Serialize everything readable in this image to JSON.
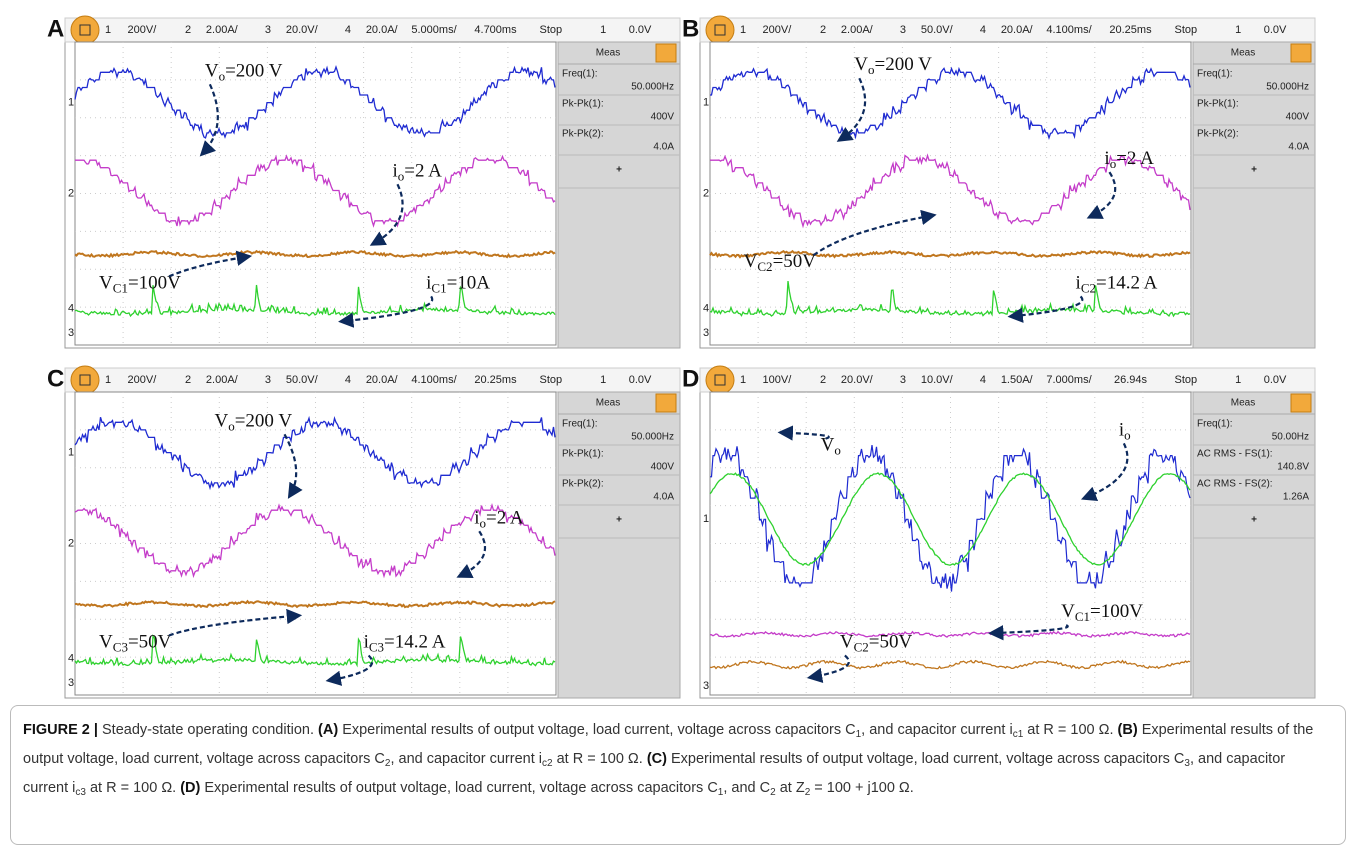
{
  "panels": [
    {
      "label": "A",
      "header": [
        "1",
        "200V/",
        "2",
        "2.00A/",
        "3",
        "20.0V/",
        "4",
        "20.0A/",
        "5.000ms/",
        "4.700ms",
        "Stop",
        "1",
        "0.0V"
      ],
      "channels": [
        "1",
        "2",
        "3",
        "4"
      ],
      "meas": {
        "title": "Meas",
        "rows": [
          [
            "Freq(1):",
            "50.000Hz"
          ],
          [
            "Pk-Pk(1):",
            "400V"
          ],
          [
            "Pk-Pk(2):",
            "4.0A"
          ]
        ],
        "add": "+"
      },
      "annotations": [
        {
          "base": "V",
          "sub": "o",
          "rest": "=200 V"
        },
        {
          "base": "i",
          "sub": "o",
          "rest": "=2 A"
        },
        {
          "base": "V",
          "sub": "C1",
          "rest": "=100V"
        },
        {
          "base": "i",
          "sub": "C1",
          "rest": "=10A"
        }
      ]
    },
    {
      "label": "B",
      "header": [
        "1",
        "200V/",
        "2",
        "2.00A/",
        "3",
        "50.0V/",
        "4",
        "20.0A/",
        "4.100ms/",
        "20.25ms",
        "Stop",
        "1",
        "0.0V"
      ],
      "channels": [
        "1",
        "2",
        "3",
        "4"
      ],
      "meas": {
        "title": "Meas",
        "rows": [
          [
            "Freq(1):",
            "50.000Hz"
          ],
          [
            "Pk-Pk(1):",
            "400V"
          ],
          [
            "Pk-Pk(2):",
            "4.0A"
          ]
        ],
        "add": "+"
      },
      "annotations": [
        {
          "base": "V",
          "sub": "o",
          "rest": "=200 V"
        },
        {
          "base": "i",
          "sub": "o",
          "rest": "=2 A"
        },
        {
          "base": "V",
          "sub": "C2",
          "rest": "=50V"
        },
        {
          "base": "i",
          "sub": "C2",
          "rest": "=14.2 A"
        }
      ]
    },
    {
      "label": "C",
      "header": [
        "1",
        "200V/",
        "2",
        "2.00A/",
        "3",
        "50.0V/",
        "4",
        "20.0A/",
        "4.100ms/",
        "20.25ms",
        "Stop",
        "1",
        "0.0V"
      ],
      "channels": [
        "1",
        "2",
        "3",
        "4"
      ],
      "meas": {
        "title": "Meas",
        "rows": [
          [
            "Freq(1):",
            "50.000Hz"
          ],
          [
            "Pk-Pk(1):",
            "400V"
          ],
          [
            "Pk-Pk(2):",
            "4.0A"
          ]
        ],
        "add": "+"
      },
      "annotations": [
        {
          "base": "V",
          "sub": "o",
          "rest": "=200 V"
        },
        {
          "base": "i",
          "sub": "o",
          "rest": "=2 A"
        },
        {
          "base": "V",
          "sub": "C3",
          "rest": "=50V"
        },
        {
          "base": "i",
          "sub": "C3",
          "rest": "=14.2 A"
        }
      ]
    },
    {
      "label": "D",
      "header": [
        "1",
        "100V/",
        "2",
        "20.0V/",
        "3",
        "10.0V/",
        "4",
        "1.50A/",
        "7.000ms/",
        "26.94s",
        "Stop",
        "1",
        "0.0V"
      ],
      "channels": [
        "1",
        "3"
      ],
      "meas": {
        "title": "Meas",
        "rows": [
          [
            "Freq(1):",
            "50.00Hz"
          ],
          [
            "AC RMS - FS(1):",
            "140.8V"
          ],
          [
            "AC RMS - FS(2):",
            "1.26A"
          ]
        ],
        "add": "+"
      },
      "annotations": [
        {
          "base": "V",
          "sub": "o",
          "rest": ""
        },
        {
          "base": "i",
          "sub": "o",
          "rest": ""
        },
        {
          "base": "V",
          "sub": "C1",
          "rest": "=100V"
        },
        {
          "base": "V",
          "sub": "C2",
          "rest": "=50V"
        }
      ]
    }
  ],
  "caption": [
    {
      "text": "FIGURE 2 |",
      "style": "bold"
    },
    {
      "text": " Steady-state operating condition. ",
      "style": "normal"
    },
    {
      "text": "(A)",
      "style": "bold"
    },
    {
      "text": " Experimental results of output voltage, load current, voltage across capacitors C",
      "style": "normal"
    },
    {
      "text": "1",
      "style": "sub"
    },
    {
      "text": ", and capacitor current i",
      "style": "normal"
    },
    {
      "text": "c1",
      "style": "sub"
    },
    {
      "text": " at R = 100 Ω. ",
      "style": "normal"
    },
    {
      "text": "(B)",
      "style": "bold"
    },
    {
      "text": " Experimental results of the output voltage, load current, voltage across capacitors C",
      "style": "normal"
    },
    {
      "text": "2",
      "style": "sub"
    },
    {
      "text": ", and capacitor current i",
      "style": "normal"
    },
    {
      "text": "c2",
      "style": "sub"
    },
    {
      "text": " at R = 100 Ω. ",
      "style": "normal"
    },
    {
      "text": "(C)",
      "style": "bold"
    },
    {
      "text": " Experimental results of output voltage, load current, voltage across capacitors C",
      "style": "normal"
    },
    {
      "text": "3",
      "style": "sub"
    },
    {
      "text": ", and capacitor current i",
      "style": "normal"
    },
    {
      "text": "c3",
      "style": "sub"
    },
    {
      "text": " at R = 100 Ω. ",
      "style": "normal"
    },
    {
      "text": "(D)",
      "style": "bold"
    },
    {
      "text": " Experimental results of output voltage, load current, voltage across capacitors C",
      "style": "normal"
    },
    {
      "text": "1",
      "style": "sub"
    },
    {
      "text": ", and C",
      "style": "normal"
    },
    {
      "text": "2",
      "style": "sub"
    },
    {
      "text": " at Z",
      "style": "normal"
    },
    {
      "text": "2",
      "style": "sub"
    },
    {
      "text": " = 100 + j100 Ω.",
      "style": "normal"
    }
  ]
}
